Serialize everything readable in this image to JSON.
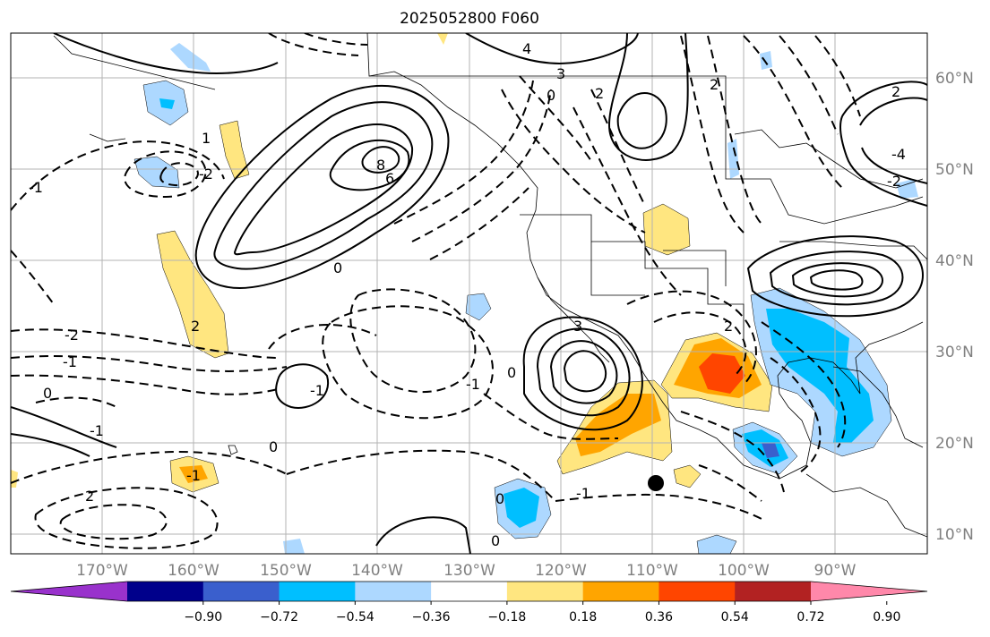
{
  "title": "2025052800 F060",
  "lon_ticks": [
    "170°W",
    "160°W",
    "150°W",
    "140°W",
    "130°W",
    "120°W",
    "110°W",
    "100°W",
    "90°W"
  ],
  "lat_ticks": [
    "60°N",
    "50°N",
    "40°N",
    "30°N",
    "20°N",
    "10°N"
  ],
  "colorbar": {
    "colors": [
      "#9932cc",
      "#00008b",
      "#3a5fcd",
      "#00bfff",
      "#add8ff",
      "#ffffff",
      "#ffe680",
      "#ffa500",
      "#ff4500",
      "#b22222",
      "#ff88aa"
    ],
    "labels": [
      "−0.90",
      "−0.72",
      "−0.54",
      "−0.36",
      "−0.18",
      "0.18",
      "0.36",
      "0.54",
      "0.72",
      "0.90"
    ]
  },
  "contour_labels": [
    "4",
    "3",
    "2",
    "0",
    "-1",
    "-2",
    "6",
    "8",
    "0",
    "1",
    "2",
    "2",
    "-1",
    "0",
    "-2",
    "2",
    "-1",
    "-1",
    "0",
    "0",
    "-1",
    "3",
    "2",
    "-4",
    "0",
    "2",
    "-2",
    "0",
    "-1",
    "-1"
  ]
}
